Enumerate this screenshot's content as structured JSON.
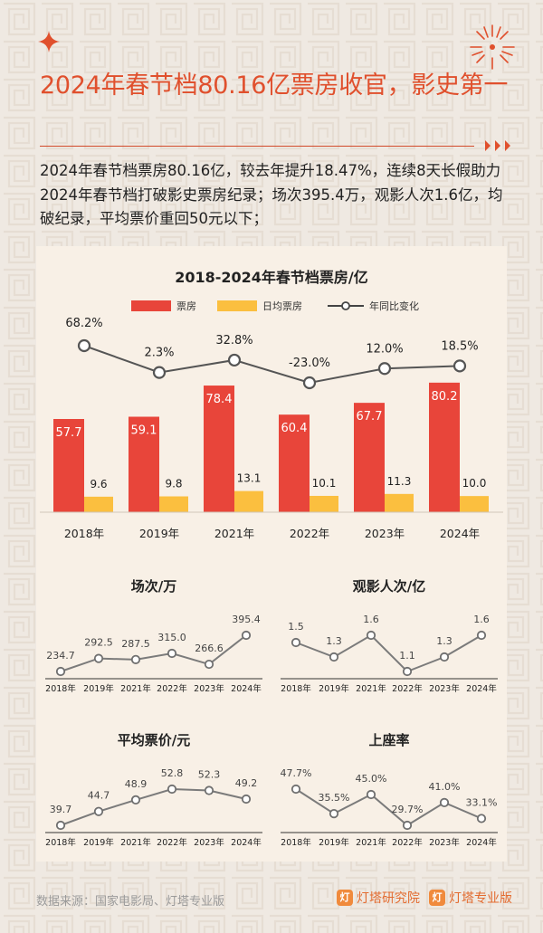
{
  "header": {
    "title": "2024年春节档80.16亿票房收官，影史第一",
    "intro": "2024年春节档票房80.16亿，较去年提升18.47%，连续8天长假助力2024年春节档打破影史票房纪录；场次395.4万，观影人次1.6亿，均破纪录，平均票价重回50元以下；"
  },
  "chart_data": [
    {
      "type": "bar",
      "title": "2018-2024年春节档票房/亿",
      "categories": [
        "2018年",
        "2019年",
        "2021年",
        "2022年",
        "2023年",
        "2024年"
      ],
      "series": [
        {
          "name": "票房",
          "values": [
            57.7,
            59.1,
            78.4,
            60.4,
            67.7,
            80.2
          ],
          "color": "#e8453a"
        },
        {
          "name": "日均票房",
          "values": [
            9.6,
            9.8,
            13.1,
            10.1,
            11.3,
            10.0
          ],
          "color": "#fbbf3f"
        },
        {
          "name": "年同比变化",
          "type": "line",
          "values": [
            68.2,
            2.3,
            32.8,
            -23.0,
            12.0,
            18.5
          ],
          "labels": [
            "68.2%",
            "2.3%",
            "32.8%",
            "-23.0%",
            "12.0%",
            "18.5%"
          ],
          "color": "#555555"
        }
      ],
      "legend": "top-center",
      "grid": false
    },
    {
      "type": "line",
      "title": "场次/万",
      "categories": [
        "2018年",
        "2019年",
        "2021年",
        "2022年",
        "2023年",
        "2024年"
      ],
      "values": [
        234.7,
        292.5,
        287.5,
        315.0,
        266.6,
        395.4
      ],
      "labels": [
        "234.7",
        "292.5",
        "287.5",
        "315.0",
        "266.6",
        "395.4"
      ]
    },
    {
      "type": "line",
      "title": "观影人次/亿",
      "categories": [
        "2018年",
        "2019年",
        "2021年",
        "2022年",
        "2023年",
        "2024年"
      ],
      "values": [
        1.5,
        1.3,
        1.6,
        1.1,
        1.3,
        1.6
      ],
      "labels": [
        "1.5",
        "1.3",
        "1.6",
        "1.1",
        "1.3",
        "1.6"
      ]
    },
    {
      "type": "line",
      "title": "平均票价/元",
      "categories": [
        "2018年",
        "2019年",
        "2021年",
        "2022年",
        "2023年",
        "2024年"
      ],
      "values": [
        39.7,
        44.7,
        48.9,
        52.8,
        52.3,
        49.2
      ],
      "labels": [
        "39.7",
        "44.7",
        "48.9",
        "52.8",
        "52.3",
        "49.2"
      ]
    },
    {
      "type": "line",
      "title": "上座率",
      "categories": [
        "2018年",
        "2019年",
        "2021年",
        "2022年",
        "2023年",
        "2024年"
      ],
      "values": [
        47.7,
        35.5,
        45.0,
        29.7,
        41.0,
        33.1
      ],
      "labels": [
        "47.7%",
        "35.5%",
        "45.0%",
        "29.7%",
        "41.0%",
        "33.1%"
      ]
    }
  ],
  "footer": {
    "source": "数据来源：国家电影局、灯塔专业版",
    "brand1": "灯塔研究院",
    "brand2": "灯塔专业版"
  },
  "colors": {
    "accent": "#e0502d",
    "bar_main": "#e8453a",
    "bar_daily": "#fbbf3f",
    "line": "#777777",
    "background": "#efe9e2",
    "panel": "#f8f0e6"
  }
}
